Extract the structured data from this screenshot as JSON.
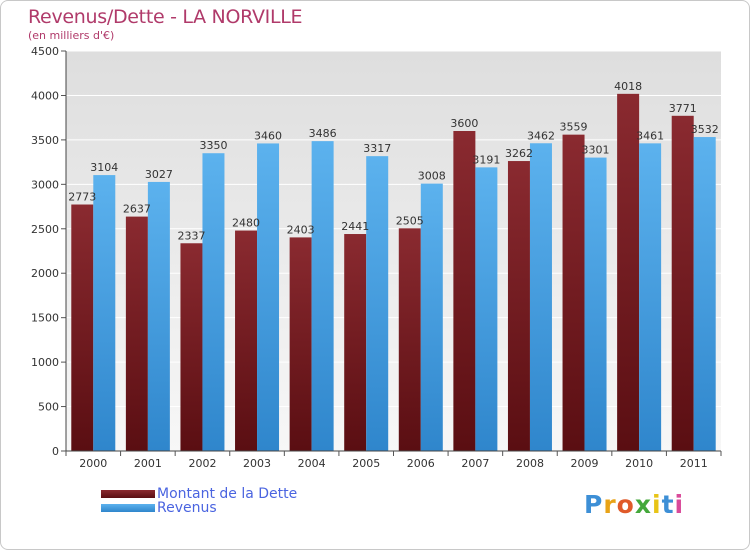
{
  "title": "Revenus/Dette - LA NORVILLE",
  "subtitle": "(en milliers d'€)",
  "legend": {
    "debt_label": "Montant de la Dette",
    "revenue_label": "Revenus"
  },
  "logo": "Proxiti",
  "colors": {
    "debt": "#7a1f24",
    "revenue": "#4aa3e6",
    "title": "#b03a6a",
    "legend_text": "#4a64e0"
  },
  "chart_data": {
    "type": "bar",
    "title": "Revenus/Dette - LA NORVILLE",
    "subtitle": "(en milliers d'€)",
    "categories": [
      "2000",
      "2001",
      "2002",
      "2003",
      "2004",
      "2005",
      "2006",
      "2007",
      "2008",
      "2009",
      "2010",
      "2011"
    ],
    "series": [
      {
        "name": "Montant de la Dette",
        "values": [
          2773,
          2637,
          2337,
          2480,
          2403,
          2441,
          2505,
          3600,
          3262,
          3559,
          4018,
          3771
        ]
      },
      {
        "name": "Revenus",
        "values": [
          3104,
          3027,
          3350,
          3460,
          3486,
          3317,
          3008,
          3191,
          3462,
          3301,
          3461,
          3532
        ]
      }
    ],
    "data_labels": [
      [
        "2773",
        "2637",
        "2337",
        "2480",
        "2403",
        "2441",
        "2505",
        "3600",
        "3262",
        "3559",
        "4018",
        "3771"
      ],
      [
        "3104",
        "3027",
        "3350",
        "3460",
        "3486",
        "3317",
        "3008",
        "3191",
        "3462",
        "3301",
        "3461",
        "3532"
      ]
    ],
    "ylim": [
      0,
      4500
    ],
    "yticks": [
      0,
      500,
      1000,
      1500,
      2000,
      2500,
      3000,
      3500,
      4000,
      4500
    ],
    "grid": true,
    "legend_position": "bottom-left"
  }
}
